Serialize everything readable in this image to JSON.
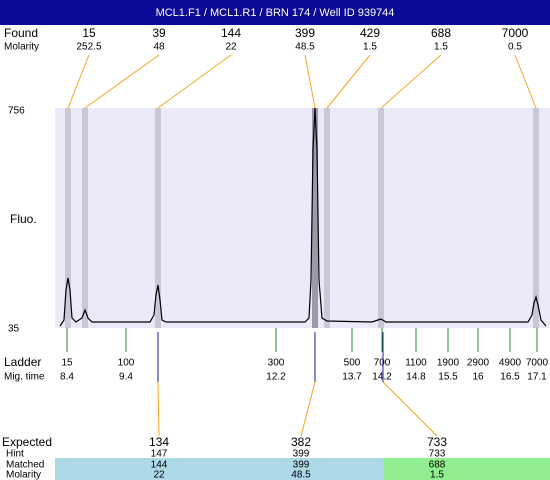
{
  "header": {
    "title": "MCL1.F1 / MCL1.R1 / BRN 174 / Well ID 939744"
  },
  "found": {
    "label": "Found",
    "molarity_label": "Molarity",
    "peaks": [
      {
        "size": 15,
        "molarity": 252.5
      },
      {
        "size": 39,
        "molarity": 48
      },
      {
        "size": 144,
        "molarity": 22
      },
      {
        "size": 399,
        "molarity": 48.5
      },
      {
        "size": 429,
        "molarity": 1.5
      },
      {
        "size": 688,
        "molarity": 1.5
      },
      {
        "size": 7000,
        "molarity": 0.5
      }
    ]
  },
  "axis": {
    "label": "Fluo.",
    "top": 756,
    "bottom": 35
  },
  "ladder": {
    "label": "Ladder",
    "time_label": "Mig. time",
    "items": [
      {
        "size": 15,
        "time": 8.4
      },
      {
        "size": 100,
        "time": 9.4
      },
      {
        "size": 300,
        "time": 12.2
      },
      {
        "size": 500,
        "time": 13.7
      },
      {
        "size": 700,
        "time": 14.2
      },
      {
        "size": 1100,
        "time": 14.8
      },
      {
        "size": 1900,
        "time": 15.5
      },
      {
        "size": 2900,
        "time": 16
      },
      {
        "size": 4900,
        "time": 16.5
      },
      {
        "size": 7000,
        "time": 17.1
      }
    ]
  },
  "expected": {
    "labels": [
      "Expected",
      "Hint",
      "Matched",
      "Molarity"
    ],
    "columns": [
      {
        "expected": 134,
        "hint": 147,
        "matched": 144,
        "molarity": 22
      },
      {
        "expected": 382,
        "hint": 399,
        "matched": 399,
        "molarity": 48.5
      },
      {
        "expected": 733,
        "hint": 733,
        "matched": 688,
        "molarity": 1.5
      }
    ]
  }
}
